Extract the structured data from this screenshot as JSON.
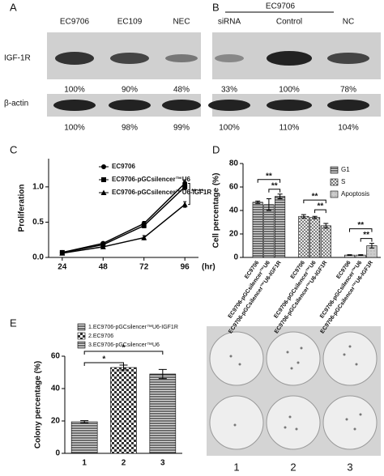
{
  "panel_labels": [
    "A",
    "B",
    "C",
    "D",
    "E"
  ],
  "blot_a": {
    "columns": [
      "EC9706",
      "EC109",
      "NEC"
    ],
    "rows": [
      {
        "label": "IGF-1R",
        "percents": [
          "100%",
          "90%",
          "48%"
        ]
      },
      {
        "label": "β-actin",
        "percents": [
          "100%",
          "98%",
          "99%"
        ]
      }
    ]
  },
  "blot_b": {
    "group": "EC9706",
    "columns": [
      "siRNA",
      "Control",
      "NC"
    ],
    "percents": [
      [
        "33%",
        "100%",
        "78%"
      ],
      [
        "100%",
        "110%",
        "104%"
      ]
    ]
  },
  "chart_data": [
    {
      "type": "line",
      "y_label": "Proliferation",
      "x_unit": "(hr)",
      "x": [
        24,
        48,
        72,
        96
      ],
      "xlim": [
        16,
        104
      ],
      "xticks": [
        24,
        48,
        72,
        96
      ],
      "ylim": [
        0,
        1.4
      ],
      "yticks": [
        {
          "value": 0,
          "label": "0.0"
        },
        {
          "value": 0.5,
          "label": "0.5"
        },
        {
          "value": 1,
          "label": "1.0"
        }
      ],
      "series": [
        {
          "name": "EC9706",
          "color": "#000000",
          "marker": "circle",
          "values": [
            0.07,
            0.2,
            0.48,
            1.05
          ],
          "errors": [
            0.01,
            0.02,
            0.03,
            0.05
          ]
        },
        {
          "name": "EC9706-pGCsilencer™U6",
          "color": "#000000",
          "marker": "square",
          "values": [
            0.07,
            0.18,
            0.45,
            1.0
          ],
          "errors": [
            0.01,
            0.02,
            0.03,
            0.04
          ]
        },
        {
          "name": "EC9706-pGCsilencer™U6-IGF1R",
          "color": "#000000",
          "marker": "triangle",
          "values": [
            0.06,
            0.15,
            0.28,
            0.75
          ],
          "errors": [
            0.01,
            0.02,
            0.03,
            0.04
          ]
        }
      ],
      "annotations": [
        "**",
        "**"
      ]
    },
    {
      "type": "grouped_bar",
      "y_label": "Cell percentage (%)",
      "categories": [
        "EC9706",
        "EC9706-pGCsilencer™U6",
        "EC9706-pGCsilencer™U6-IGF1R"
      ],
      "ylim": [
        0,
        80
      ],
      "yticks": [
        0,
        20,
        40,
        60,
        80
      ],
      "series": [
        {
          "name": "G1",
          "values": [
            47,
            45,
            52
          ],
          "errors": [
            1,
            5,
            2
          ]
        },
        {
          "name": "S",
          "values": [
            35,
            34,
            27
          ],
          "errors": [
            1.5,
            1,
            2
          ]
        },
        {
          "name": "Apoptosis",
          "values": [
            2,
            2,
            10
          ],
          "errors": [
            0.3,
            0.3,
            2
          ]
        }
      ],
      "annotations": [
        "**",
        "**",
        "**",
        "**",
        "**",
        "**"
      ]
    },
    {
      "type": "bar",
      "y_label": "Colony percentage (%)",
      "categories": [
        "1",
        "2",
        "3"
      ],
      "values": [
        19.5,
        53,
        49
      ],
      "errors": [
        0.7,
        1.5,
        2.8
      ],
      "ylim": [
        0,
        60
      ],
      "yticks": [
        0,
        20,
        40,
        60
      ],
      "legend": [
        "1.EC9706-pGCsilencer™U6-IGF1R",
        "2.EC9706",
        "3.EC9706-pGCsilencer™U6"
      ],
      "annotations": [
        "*",
        "*"
      ]
    }
  ],
  "photo": {
    "labels": [
      "1",
      "2",
      "3"
    ]
  }
}
